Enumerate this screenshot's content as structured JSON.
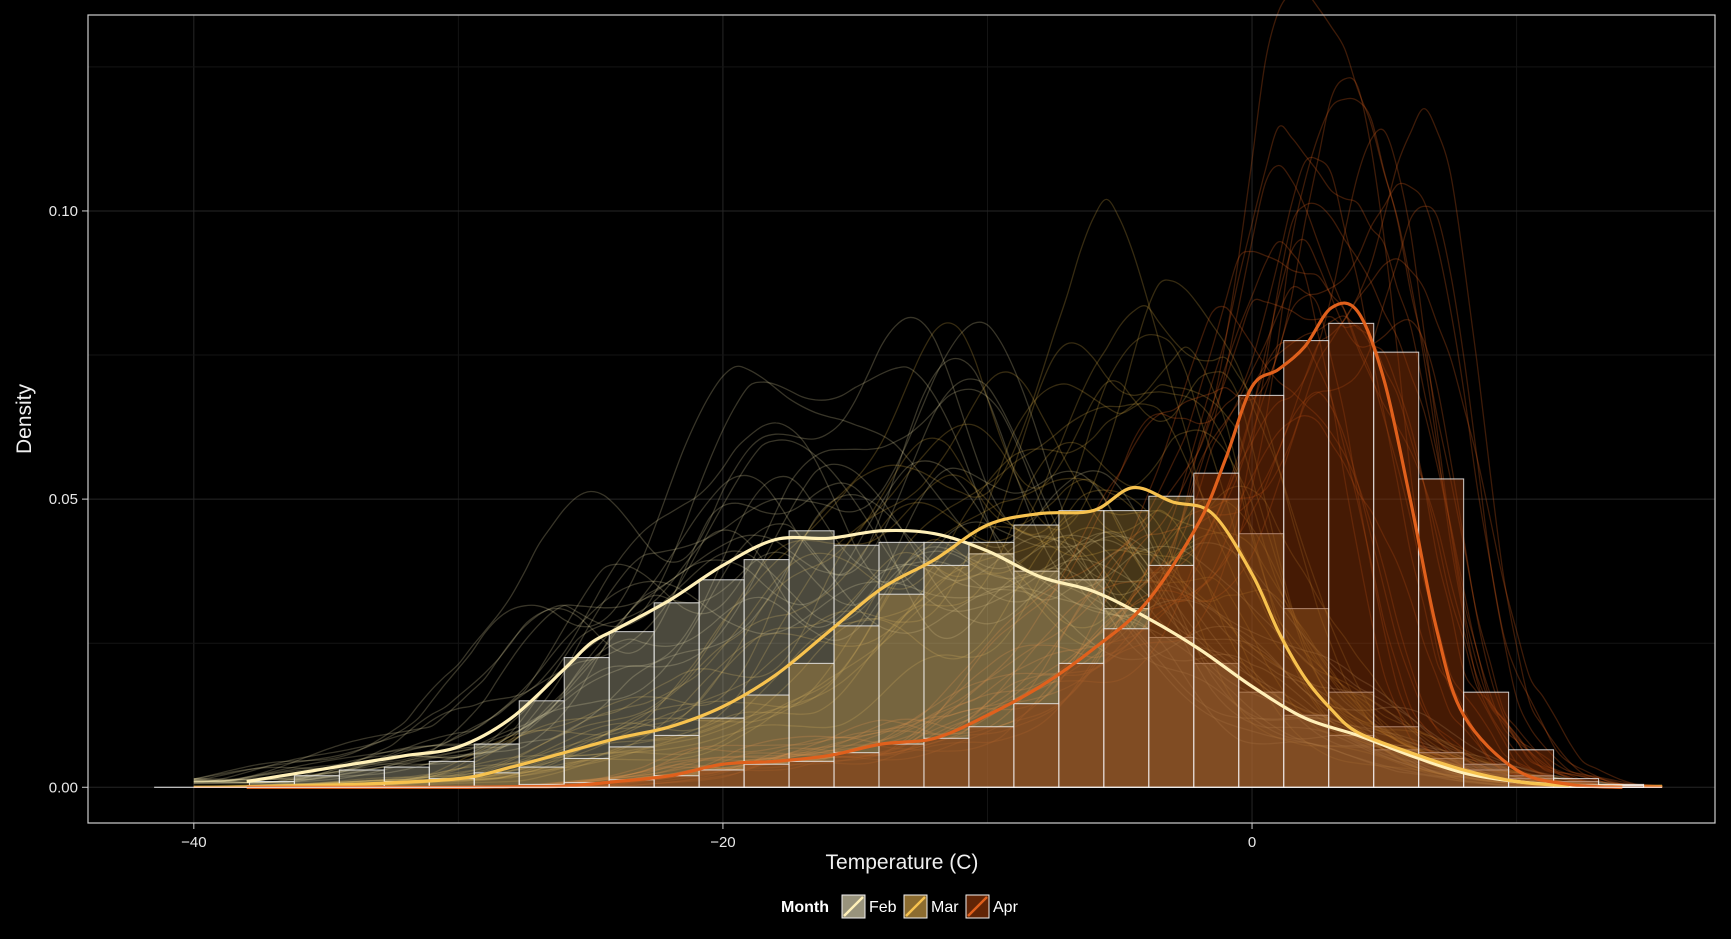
{
  "chart_data": {
    "type": "histogram-density",
    "title": "",
    "xlabel": "Temperature (C)",
    "ylabel": "Density",
    "xlim": [
      -44,
      17.5
    ],
    "ylim": [
      -0.0062,
      0.134
    ],
    "x_ticks": [
      -40,
      -20,
      0
    ],
    "x_tick_labels": [
      "−40",
      "−20",
      "0"
    ],
    "y_ticks": [
      0,
      0.05,
      0.1
    ],
    "y_tick_labels": [
      "0.00",
      "0.05",
      "0.10"
    ],
    "grid": true,
    "legend": {
      "title": "Month",
      "placement": "bottom",
      "entries": [
        "Feb",
        "Mar",
        "Apr"
      ]
    },
    "bin_width": 1.7,
    "series": [
      {
        "name": "Feb",
        "color": "#FFF0B8",
        "bar_fill": "#D8D2B0",
        "bar_fill_opacity": 0.35,
        "bin_starts": [
          -37.9,
          -36.2,
          -34.5,
          -32.8,
          -31.1,
          -29.4,
          -27.7,
          -26.0,
          -24.3,
          -22.6,
          -20.9,
          -19.2,
          -17.5,
          -15.8,
          -14.1,
          -12.4,
          -10.7,
          -9.0,
          -7.3,
          -5.6,
          -3.9,
          -2.2,
          -0.5,
          1.2,
          2.9,
          4.6,
          6.3,
          8.0,
          9.7,
          11.4,
          13.1
        ],
        "bar_values": [
          0.001,
          0.002,
          0.003,
          0.0035,
          0.0045,
          0.0075,
          0.015,
          0.0225,
          0.027,
          0.032,
          0.036,
          0.0395,
          0.0445,
          0.042,
          0.0425,
          0.0425,
          0.0405,
          0.0375,
          0.036,
          0.031,
          0.026,
          0.0215,
          0.0165,
          0.0125,
          0.009,
          0.0065,
          0.005,
          0.004,
          0.002,
          0.001,
          0.0005
        ],
        "density_x": [
          -38,
          -36,
          -34,
          -32,
          -30,
          -28,
          -26,
          -25,
          -24,
          -22,
          -20,
          -18,
          -16,
          -14,
          -12,
          -10,
          -8,
          -6,
          -4,
          -2,
          0,
          2,
          4,
          6,
          8,
          10,
          12,
          14
        ],
        "density_y": [
          0.001,
          0.0025,
          0.004,
          0.0055,
          0.007,
          0.012,
          0.0205,
          0.025,
          0.0275,
          0.0325,
          0.0385,
          0.043,
          0.0432,
          0.0445,
          0.044,
          0.041,
          0.0365,
          0.034,
          0.0295,
          0.024,
          0.0175,
          0.012,
          0.009,
          0.0055,
          0.0025,
          0.001,
          0.0003,
          0.0001
        ]
      },
      {
        "name": "Mar",
        "color": "#F7C24E",
        "bar_fill": "#C89A45",
        "bar_fill_opacity": 0.35,
        "bin_starts": [
          -37.9,
          -36.2,
          -34.5,
          -32.8,
          -31.1,
          -29.4,
          -27.7,
          -26.0,
          -24.3,
          -22.6,
          -20.9,
          -19.2,
          -17.5,
          -15.8,
          -14.1,
          -12.4,
          -10.7,
          -9.0,
          -7.3,
          -5.6,
          -3.9,
          -2.2,
          -0.5,
          1.2,
          2.9,
          4.6,
          6.3,
          8.0,
          9.7,
          11.4,
          13.1
        ],
        "bar_values": [
          0.0002,
          0.0003,
          0.0005,
          0.001,
          0.0015,
          0.0025,
          0.0035,
          0.005,
          0.007,
          0.009,
          0.012,
          0.016,
          0.0215,
          0.028,
          0.0335,
          0.0385,
          0.0425,
          0.0455,
          0.048,
          0.048,
          0.0505,
          0.05,
          0.044,
          0.031,
          0.0165,
          0.0105,
          0.006,
          0.003,
          0.0015,
          0.0005,
          0.0002
        ],
        "density_x": [
          -38,
          -34,
          -30,
          -28,
          -26,
          -24,
          -22,
          -20,
          -18,
          -16,
          -14,
          -12,
          -10,
          -8,
          -6,
          -4.5,
          -3,
          -1.5,
          0,
          1,
          2,
          3,
          4,
          6,
          8,
          10,
          12
        ],
        "density_y": [
          0.0001,
          0.0005,
          0.0015,
          0.0035,
          0.006,
          0.0085,
          0.0105,
          0.014,
          0.0195,
          0.027,
          0.0345,
          0.0395,
          0.0455,
          0.0475,
          0.048,
          0.052,
          0.0495,
          0.0475,
          0.037,
          0.027,
          0.019,
          0.0135,
          0.0095,
          0.006,
          0.003,
          0.001,
          0.0002
        ]
      },
      {
        "name": "Apr",
        "color": "#E0601C",
        "bar_fill": "#8A3408",
        "bar_fill_opacity": 0.5,
        "bin_starts": [
          -37.9,
          -36.2,
          -34.5,
          -32.8,
          -31.1,
          -29.4,
          -27.7,
          -26.0,
          -24.3,
          -22.6,
          -20.9,
          -19.2,
          -17.5,
          -15.8,
          -14.1,
          -12.4,
          -10.7,
          -9.0,
          -7.3,
          -5.6,
          -3.9,
          -2.2,
          -0.5,
          1.2,
          2.9,
          4.6,
          6.3,
          8.0,
          9.7,
          11.4,
          13.1
        ],
        "bar_values": [
          0,
          0,
          0,
          0,
          0,
          0.0002,
          0.0005,
          0.0008,
          0.0013,
          0.002,
          0.003,
          0.004,
          0.0045,
          0.006,
          0.0075,
          0.0085,
          0.0105,
          0.0145,
          0.0215,
          0.0275,
          0.0385,
          0.0545,
          0.068,
          0.0775,
          0.0805,
          0.0755,
          0.0535,
          0.0165,
          0.0065,
          0.0015,
          0.0003
        ],
        "density_x": [
          -38,
          -34,
          -30,
          -28,
          -26,
          -24,
          -22,
          -20,
          -18,
          -16,
          -14,
          -12,
          -10,
          -8,
          -6,
          -4,
          -2,
          -1,
          0,
          1,
          2,
          3,
          4,
          5,
          6,
          7,
          8,
          10,
          12,
          14
        ],
        "density_y": [
          0,
          0,
          0,
          0.0001,
          0.0002,
          0.001,
          0.002,
          0.004,
          0.0045,
          0.0055,
          0.0075,
          0.0085,
          0.0125,
          0.0175,
          0.024,
          0.032,
          0.046,
          0.057,
          0.0695,
          0.0725,
          0.0765,
          0.0832,
          0.0825,
          0.0705,
          0.0495,
          0.027,
          0.0125,
          0.003,
          0.0005,
          0
        ]
      }
    ]
  }
}
